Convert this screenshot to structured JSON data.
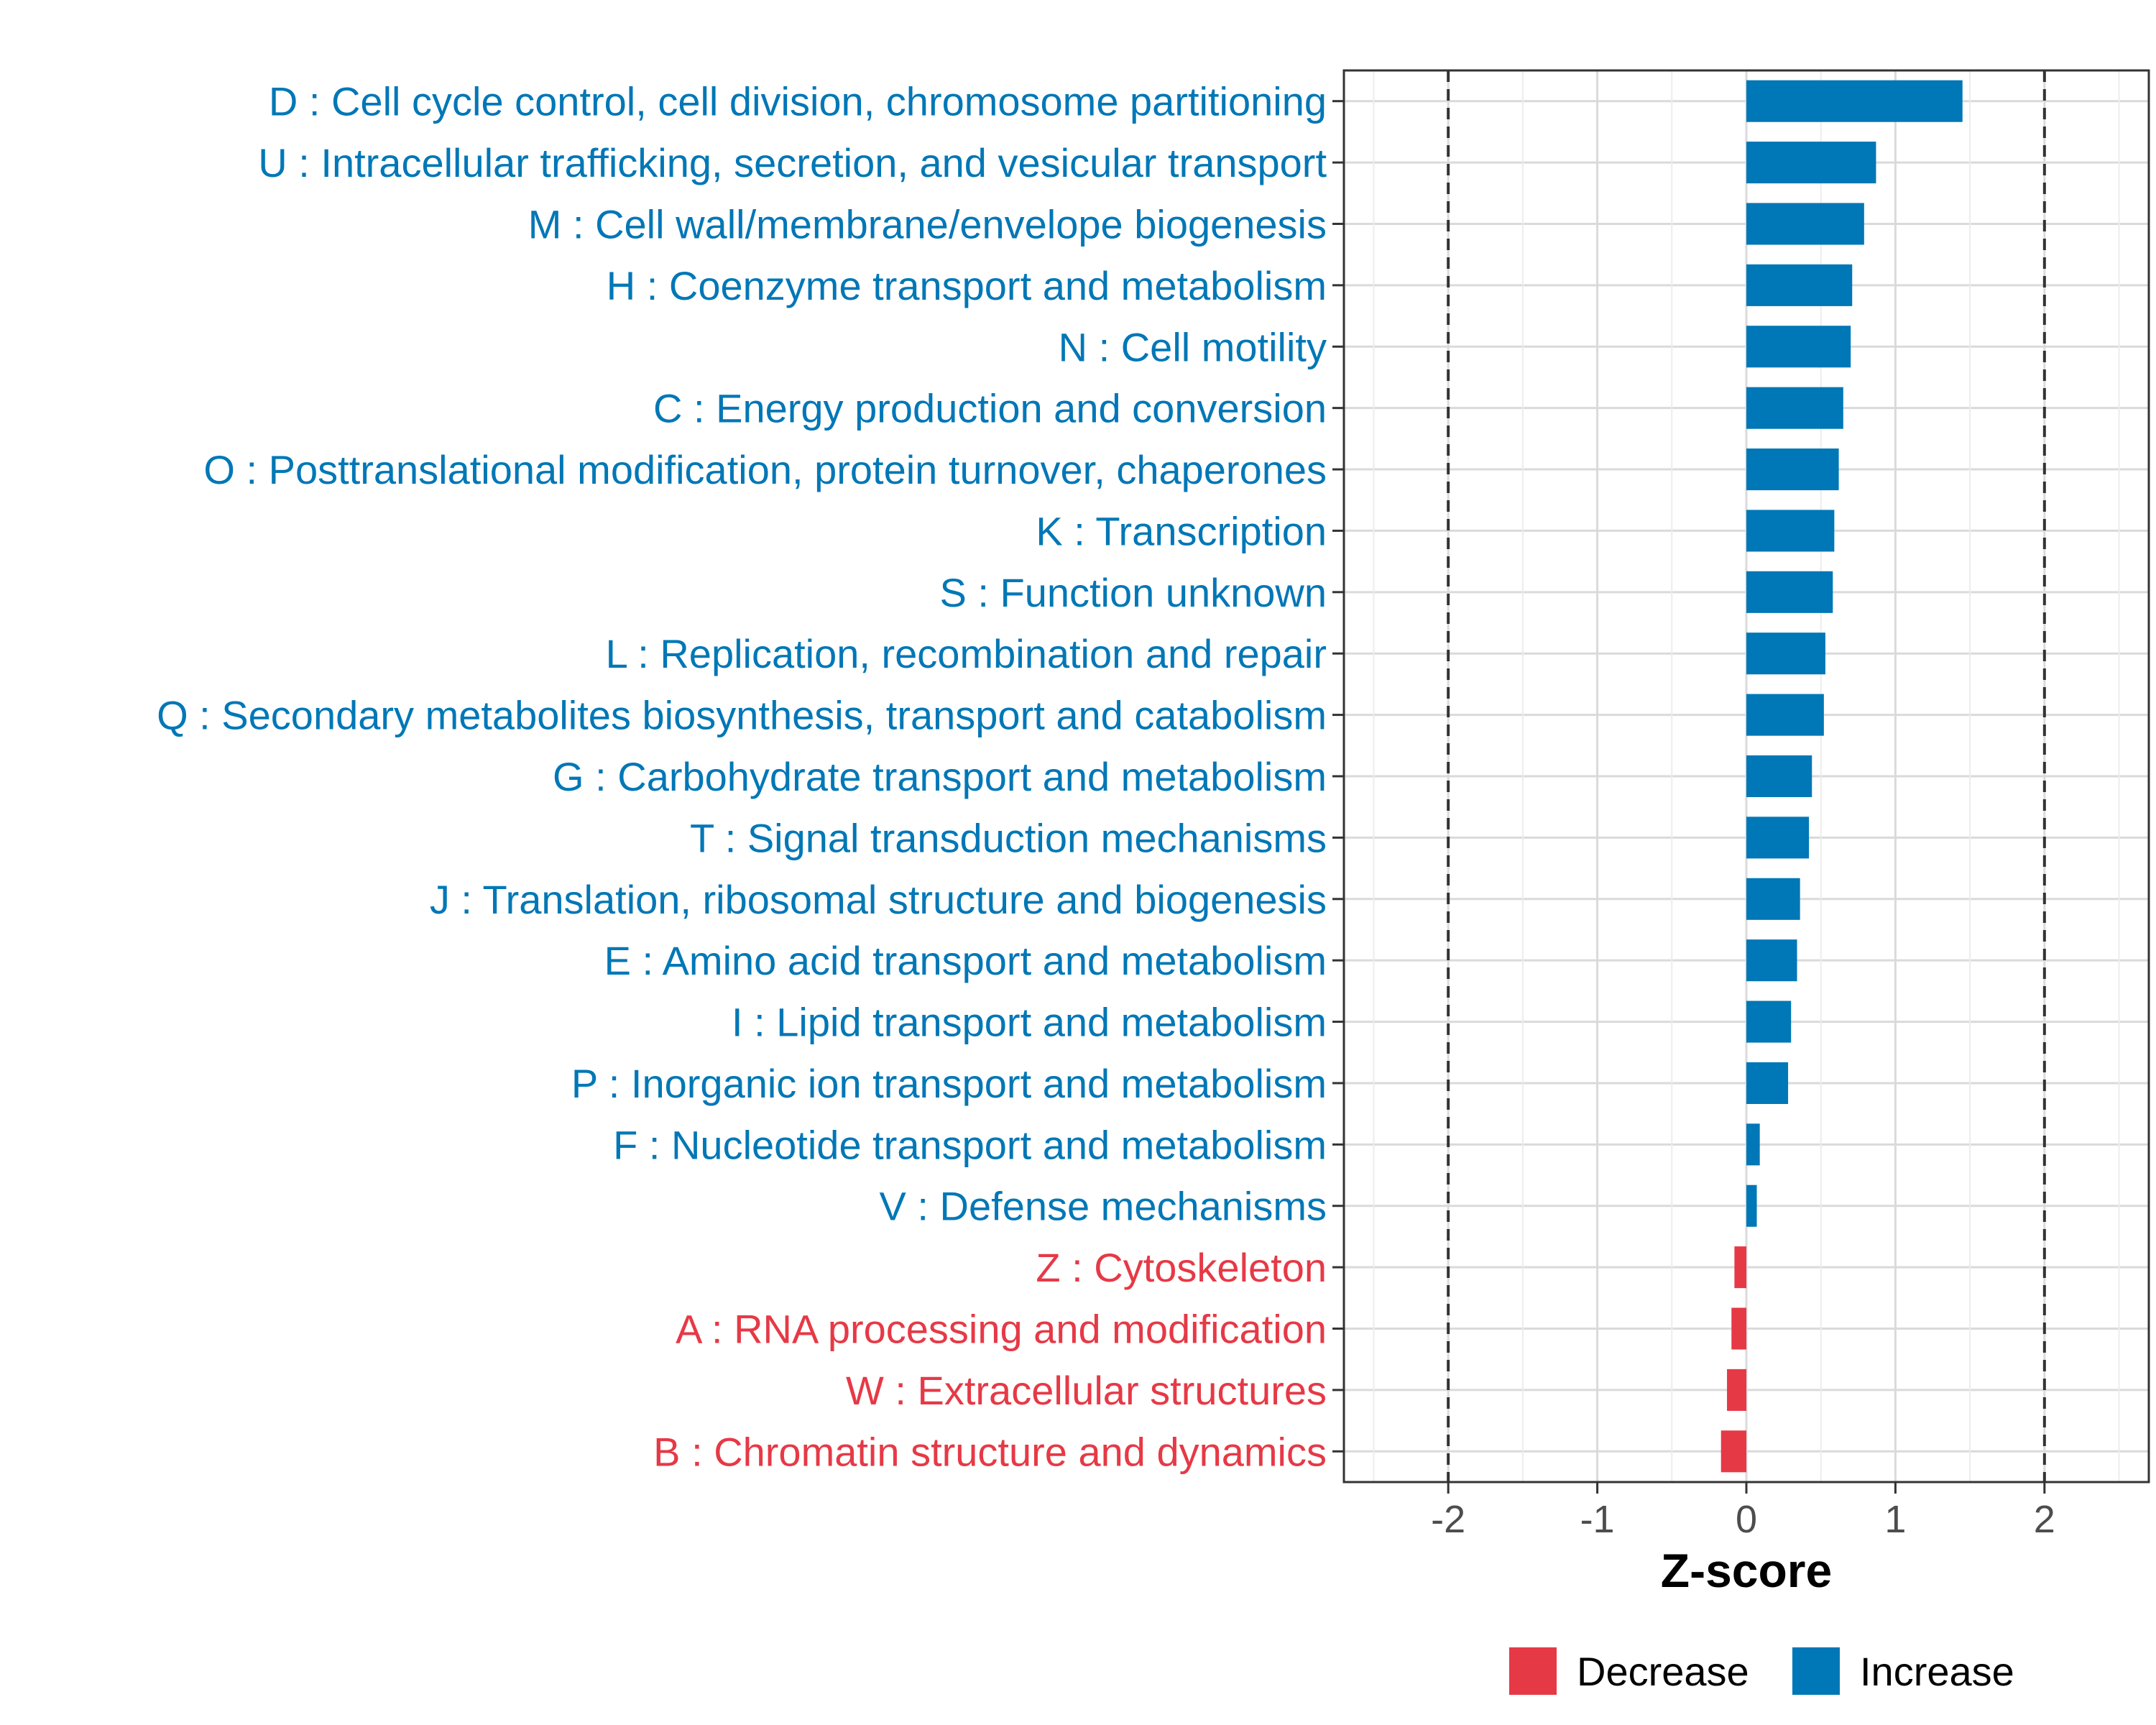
{
  "chart_data": {
    "type": "bar",
    "orientation": "horizontal",
    "title": "",
    "xlabel": "Z-score",
    "ylabel": "",
    "xlim": [
      -2.7,
      2.7
    ],
    "xticks": [
      -2,
      -1,
      0,
      1,
      2
    ],
    "xtick_labels": [
      "-2",
      "-1",
      "0",
      "1",
      "2"
    ],
    "reference_lines": [
      -2,
      2
    ],
    "grid": true,
    "legend_position": "bottom",
    "colors": {
      "Decrease": "#e63946",
      "Increase": "#0077b6"
    },
    "categories": [
      "D : Cell cycle control, cell division, chromosome partitioning",
      "U : Intracellular trafficking, secretion, and vesicular transport",
      "M : Cell wall/membrane/envelope biogenesis",
      "H : Coenzyme transport and metabolism",
      "N : Cell motility",
      "C : Energy production and conversion",
      "O : Posttranslational modification, protein turnover, chaperones",
      "K : Transcription",
      "S : Function unknown",
      "L : Replication, recombination and repair",
      "Q : Secondary metabolites biosynthesis, transport and catabolism",
      "G : Carbohydrate transport and metabolism",
      "T : Signal transduction mechanisms",
      "J : Translation, ribosomal structure and biogenesis",
      "E : Amino acid transport and metabolism",
      "I : Lipid transport and metabolism",
      "P : Inorganic ion transport and metabolism",
      "F : Nucleotide transport and metabolism",
      "V : Defense mechanisms",
      "Z : Cytoskeleton",
      "A : RNA processing and modification",
      "W : Extracellular structures",
      "B : Chromatin structure and dynamics"
    ],
    "values": [
      1.45,
      0.87,
      0.79,
      0.71,
      0.7,
      0.65,
      0.62,
      0.59,
      0.58,
      0.53,
      0.52,
      0.44,
      0.42,
      0.36,
      0.34,
      0.3,
      0.28,
      0.09,
      0.07,
      -0.08,
      -0.1,
      -0.13,
      -0.17
    ],
    "groups": [
      "Increase",
      "Increase",
      "Increase",
      "Increase",
      "Increase",
      "Increase",
      "Increase",
      "Increase",
      "Increase",
      "Increase",
      "Increase",
      "Increase",
      "Increase",
      "Increase",
      "Increase",
      "Increase",
      "Increase",
      "Increase",
      "Increase",
      "Decrease",
      "Decrease",
      "Decrease",
      "Decrease"
    ],
    "legend": [
      "Decrease",
      "Increase"
    ]
  }
}
